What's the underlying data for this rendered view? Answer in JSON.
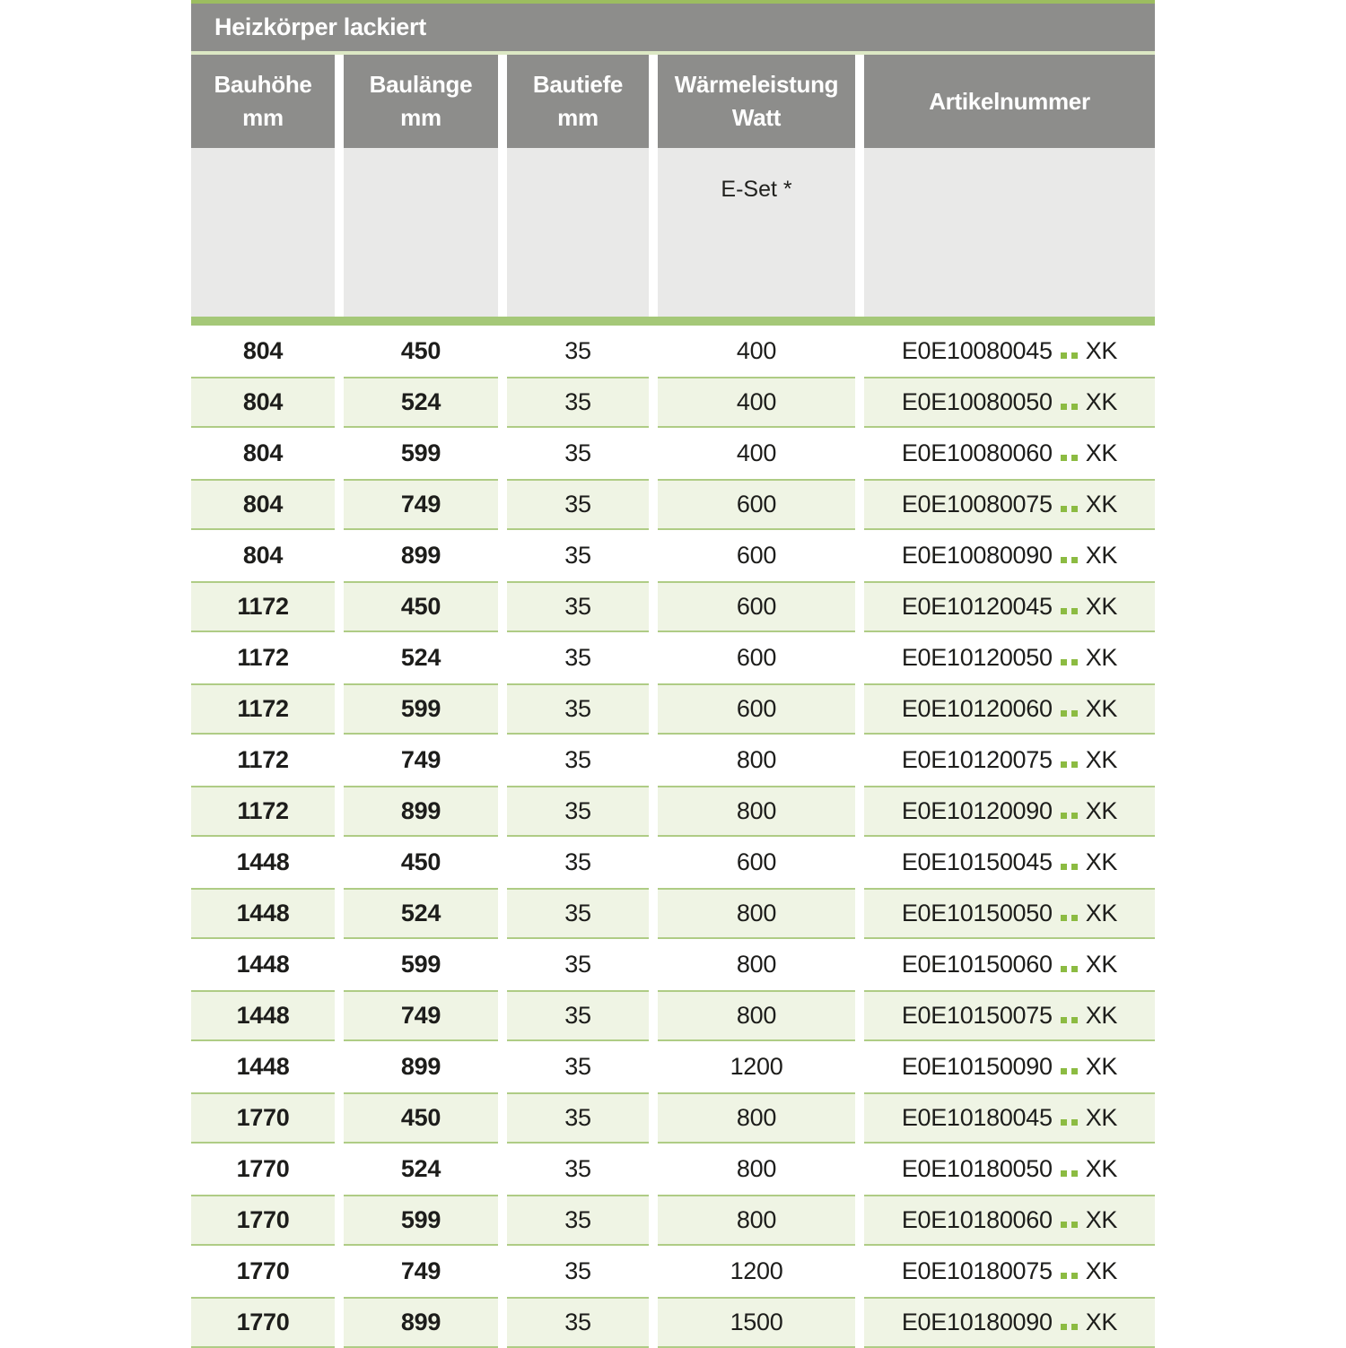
{
  "colors": {
    "header_gray": "#8d8d8b",
    "subheader_gray": "#e9e9e8",
    "top_line_green": "#9cbd60",
    "pale_line_green": "#dce8c4",
    "separator_green": "#a5c878",
    "row_green_bg": "#eff4e4",
    "row_border_green": "#afcc85",
    "dot_green": "#8cbb42",
    "text_dark": "#1d1d1b",
    "header_text": "#ffffff"
  },
  "table": {
    "title": "Heizkörper lackiert",
    "columns": [
      {
        "line1": "Bauhöhe",
        "line2": "mm"
      },
      {
        "line1": "Baulänge",
        "line2": "mm"
      },
      {
        "line1": "Bautiefe",
        "line2": "mm"
      },
      {
        "line1": "Wärmeleistung",
        "line2": "Watt"
      },
      {
        "line1": "Artikelnummer"
      }
    ],
    "subheader": {
      "eset_label": "E-Set *"
    },
    "rows": [
      {
        "bauhoehe": "804",
        "baulaenge": "450",
        "bautiefe": "35",
        "watt": "400",
        "art_code": "E0E10080045",
        "art_suffix": "XK"
      },
      {
        "bauhoehe": "804",
        "baulaenge": "524",
        "bautiefe": "35",
        "watt": "400",
        "art_code": "E0E10080050",
        "art_suffix": "XK"
      },
      {
        "bauhoehe": "804",
        "baulaenge": "599",
        "bautiefe": "35",
        "watt": "400",
        "art_code": "E0E10080060",
        "art_suffix": "XK"
      },
      {
        "bauhoehe": "804",
        "baulaenge": "749",
        "bautiefe": "35",
        "watt": "600",
        "art_code": "E0E10080075",
        "art_suffix": "XK"
      },
      {
        "bauhoehe": "804",
        "baulaenge": "899",
        "bautiefe": "35",
        "watt": "600",
        "art_code": "E0E10080090",
        "art_suffix": "XK"
      },
      {
        "bauhoehe": "1172",
        "baulaenge": "450",
        "bautiefe": "35",
        "watt": "600",
        "art_code": "E0E10120045",
        "art_suffix": "XK"
      },
      {
        "bauhoehe": "1172",
        "baulaenge": "524",
        "bautiefe": "35",
        "watt": "600",
        "art_code": "E0E10120050",
        "art_suffix": "XK"
      },
      {
        "bauhoehe": "1172",
        "baulaenge": "599",
        "bautiefe": "35",
        "watt": "600",
        "art_code": "E0E10120060",
        "art_suffix": "XK"
      },
      {
        "bauhoehe": "1172",
        "baulaenge": "749",
        "bautiefe": "35",
        "watt": "800",
        "art_code": "E0E10120075",
        "art_suffix": "XK"
      },
      {
        "bauhoehe": "1172",
        "baulaenge": "899",
        "bautiefe": "35",
        "watt": "800",
        "art_code": "E0E10120090",
        "art_suffix": "XK"
      },
      {
        "bauhoehe": "1448",
        "baulaenge": "450",
        "bautiefe": "35",
        "watt": "600",
        "art_code": "E0E10150045",
        "art_suffix": "XK"
      },
      {
        "bauhoehe": "1448",
        "baulaenge": "524",
        "bautiefe": "35",
        "watt": "800",
        "art_code": "E0E10150050",
        "art_suffix": "XK"
      },
      {
        "bauhoehe": "1448",
        "baulaenge": "599",
        "bautiefe": "35",
        "watt": "800",
        "art_code": "E0E10150060",
        "art_suffix": "XK"
      },
      {
        "bauhoehe": "1448",
        "baulaenge": "749",
        "bautiefe": "35",
        "watt": "800",
        "art_code": "E0E10150075",
        "art_suffix": "XK"
      },
      {
        "bauhoehe": "1448",
        "baulaenge": "899",
        "bautiefe": "35",
        "watt": "1200",
        "art_code": "E0E10150090",
        "art_suffix": "XK"
      },
      {
        "bauhoehe": "1770",
        "baulaenge": "450",
        "bautiefe": "35",
        "watt": "800",
        "art_code": "E0E10180045",
        "art_suffix": "XK"
      },
      {
        "bauhoehe": "1770",
        "baulaenge": "524",
        "bautiefe": "35",
        "watt": "800",
        "art_code": "E0E10180050",
        "art_suffix": "XK"
      },
      {
        "bauhoehe": "1770",
        "baulaenge": "599",
        "bautiefe": "35",
        "watt": "800",
        "art_code": "E0E10180060",
        "art_suffix": "XK"
      },
      {
        "bauhoehe": "1770",
        "baulaenge": "749",
        "bautiefe": "35",
        "watt": "1200",
        "art_code": "E0E10180075",
        "art_suffix": "XK"
      },
      {
        "bauhoehe": "1770",
        "baulaenge": "899",
        "bautiefe": "35",
        "watt": "1500",
        "art_code": "E0E10180090",
        "art_suffix": "XK"
      }
    ]
  }
}
